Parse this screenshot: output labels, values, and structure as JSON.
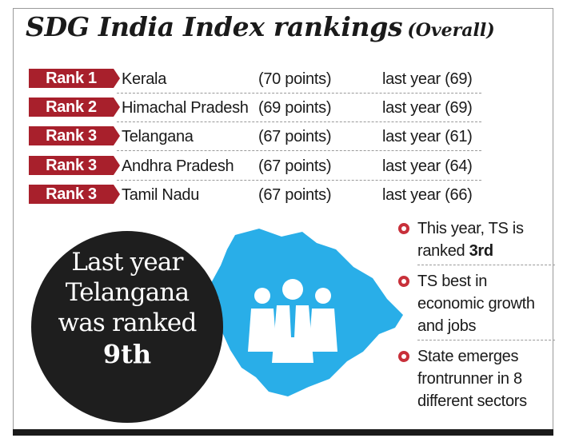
{
  "title": {
    "main": "SDG India Index rankings",
    "sub": "(Overall)"
  },
  "rankings": [
    {
      "rank": "Rank 1",
      "state": "Kerala",
      "points": "(70 points)",
      "last_year": "last year (69)"
    },
    {
      "rank": "Rank 2",
      "state": "Himachal Pradesh",
      "points": "(69 points)",
      "last_year": "last year (69)"
    },
    {
      "rank": "Rank 3",
      "state": "Telangana",
      "points": "(67 points)",
      "last_year": "last year (61)"
    },
    {
      "rank": "Rank 3",
      "state": "Andhra Pradesh",
      "points": "(67 points)",
      "last_year": "last year (64)"
    },
    {
      "rank": "Rank 3",
      "state": "Tamil Nadu",
      "points": "(67 points)",
      "last_year": "last year (66)"
    }
  ],
  "callout": {
    "line1": "Last year",
    "line2": "Telangana",
    "line3": "was ranked",
    "rank": "9th"
  },
  "notes": {
    "n1_prefix": "This year, TS is ranked ",
    "n1_bold": "3rd",
    "n2": "TS best in economic growth and jobs",
    "n3": "State emerges frontrunner in 8 different sectors"
  },
  "colors": {
    "badge": "#a8202c",
    "map": "#29aee8",
    "circle": "#1e1e1e",
    "bullet": "#c8303a"
  },
  "icons": {
    "map": "telangana-map-icon",
    "people": "people-group-icon",
    "bullet": "bullet-icon"
  }
}
